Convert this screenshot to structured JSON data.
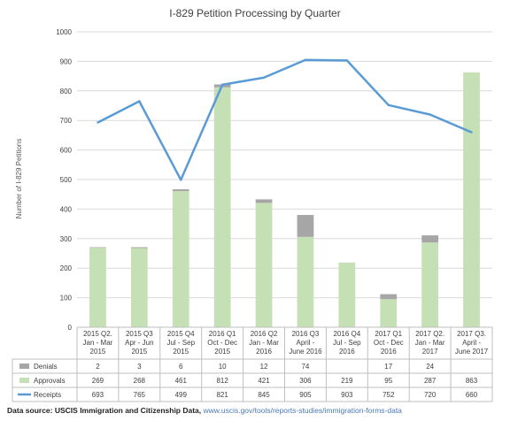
{
  "chart_data": {
    "type": "bar",
    "stacked": true,
    "title": "I-829 Petition Processing by Quarter",
    "ylabel": "Number of I-829 Petitions",
    "ylim": [
      0,
      1000
    ],
    "yticks": [
      "0",
      "100",
      "200",
      "300",
      "400",
      "500",
      "600",
      "700",
      "800",
      "900",
      "1000"
    ],
    "ytick_values": [
      0,
      100,
      200,
      300,
      400,
      500,
      600,
      700,
      800,
      900,
      1000
    ],
    "grid": "horizontal",
    "categories": [
      [
        "2015 Q2.",
        "Jan - Mar",
        "2015"
      ],
      [
        "2015 Q3",
        "Apr - Jun",
        "2015"
      ],
      [
        "2015 Q4",
        "Jul - Sep",
        "2015"
      ],
      [
        "2016 Q1",
        "Oct - Dec",
        "2015"
      ],
      [
        "2016 Q2",
        "Jan - Mar",
        "2016"
      ],
      [
        "2016 Q3",
        "April -",
        "June 2016"
      ],
      [
        "2016 Q4",
        "Jul - Sep",
        "2016"
      ],
      [
        "2017 Q1",
        "Oct - Dec",
        "2016"
      ],
      [
        "2017 Q2.",
        "Jan - Mar",
        "2017"
      ],
      [
        "2017 Q3.",
        "April -",
        "June 2017"
      ]
    ],
    "series": [
      {
        "name": "Denials",
        "type": "bar",
        "color": "#a6a6a6",
        "values": [
          2,
          3,
          6,
          10,
          12,
          74,
          null,
          17,
          24,
          null
        ],
        "labels": [
          "2",
          "3",
          "6",
          "10",
          "12",
          "74",
          "",
          "17",
          "24",
          ""
        ]
      },
      {
        "name": "Approvals",
        "type": "bar",
        "color": "#c5e0b4",
        "values": [
          269,
          268,
          461,
          812,
          421,
          306,
          219,
          95,
          287,
          863
        ],
        "labels": [
          "269",
          "268",
          "461",
          "812",
          "421",
          "306",
          "219",
          "95",
          "287",
          "863"
        ]
      },
      {
        "name": "Receipts",
        "type": "line",
        "color": "#5b9bd5",
        "values": [
          693,
          765,
          499,
          821,
          845,
          905,
          903,
          752,
          720,
          660
        ],
        "labels": [
          "693",
          "765",
          "499",
          "821",
          "845",
          "905",
          "903",
          "752",
          "720",
          "660"
        ]
      }
    ]
  },
  "source": {
    "label": "Data source: USCIS Immigration and Citizenship Data,",
    "url": "www.uscis.gov/tools/reports-studies/immigration-forms-data"
  }
}
